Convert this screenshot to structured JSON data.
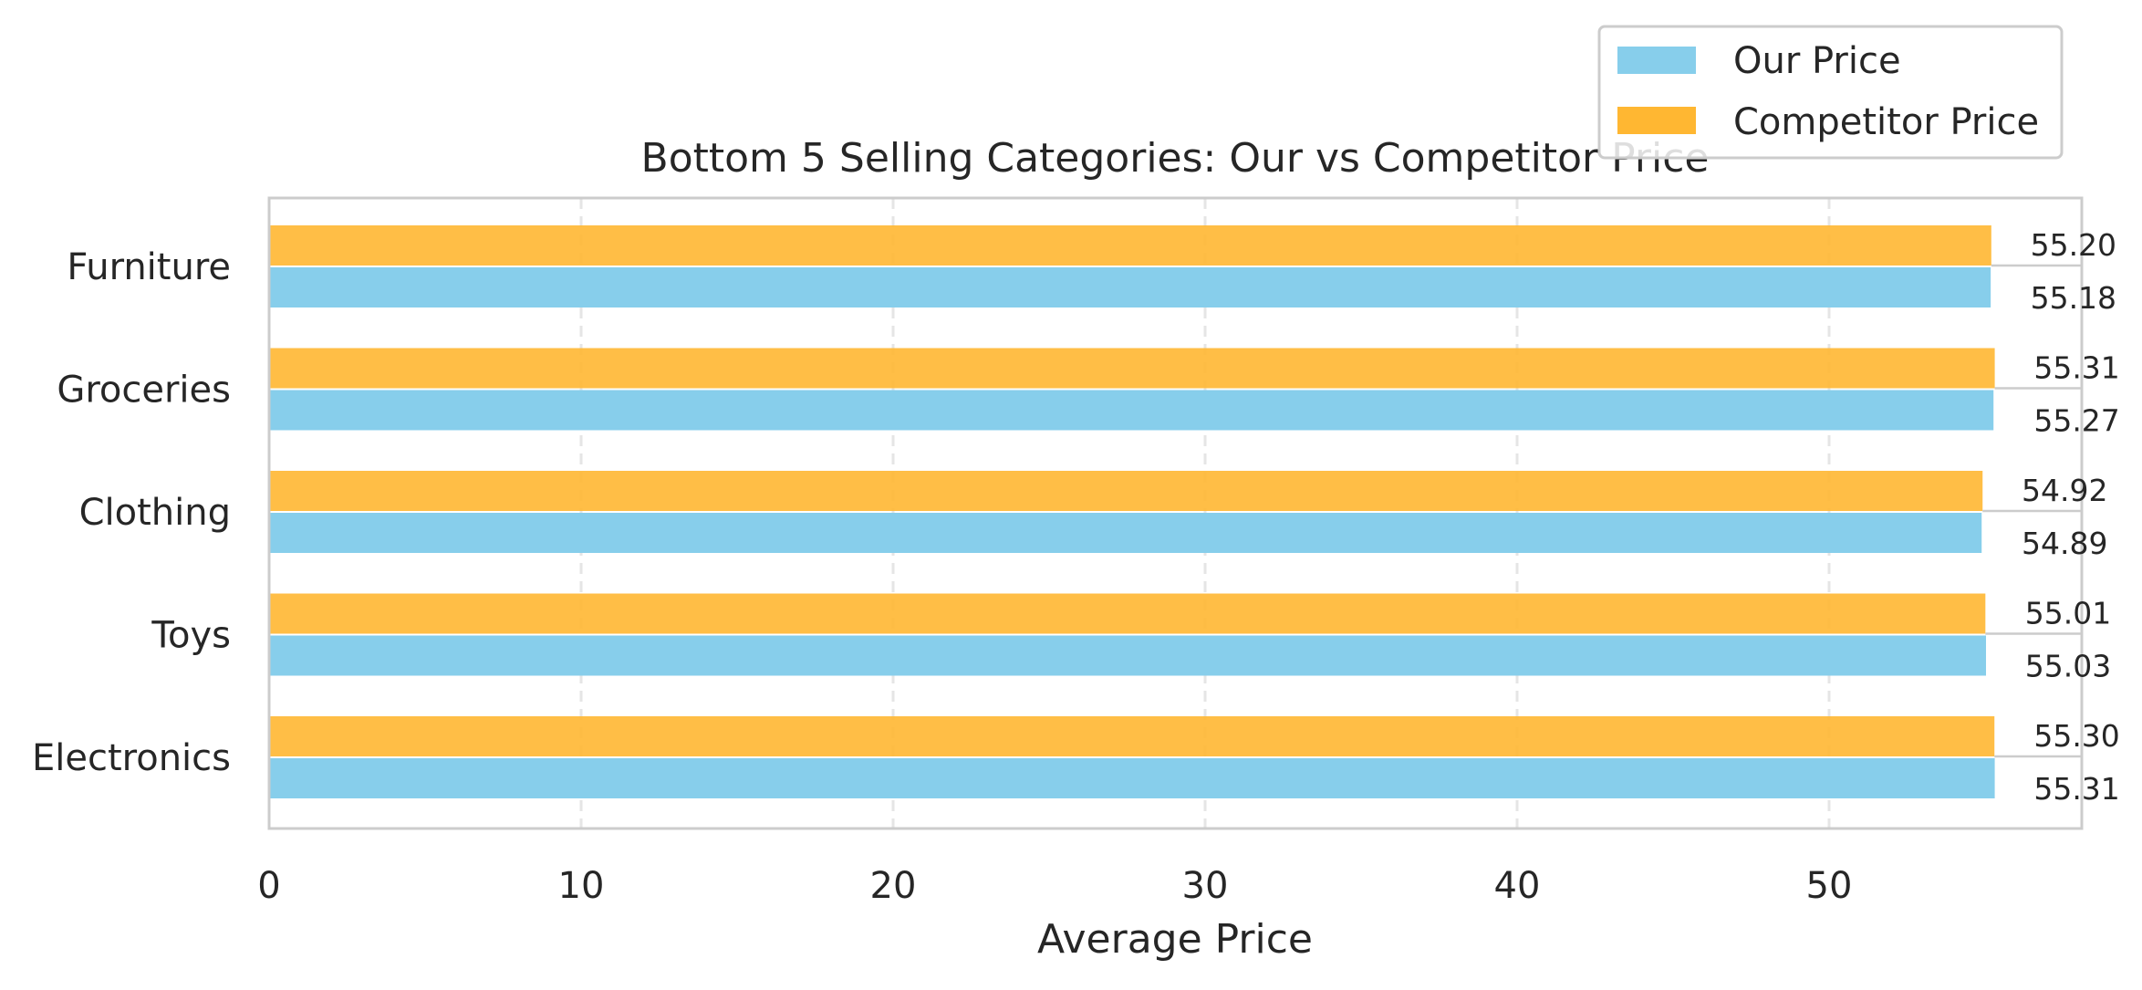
{
  "chart_data": {
    "type": "bar",
    "orientation": "horizontal",
    "title": "Bottom 5 Selling Categories: Our vs Competitor Price",
    "xlabel": "Average Price",
    "ylabel": "",
    "xlim": [
      0,
      58.1
    ],
    "xticks": [
      0,
      10,
      20,
      30,
      40,
      50
    ],
    "grid": "x-dashed",
    "legend_position": "top-right",
    "categories": [
      "Furniture",
      "Groceries",
      "Clothing",
      "Toys",
      "Electronics"
    ],
    "series": [
      {
        "name": "Our Price",
        "color": "#87ceeb",
        "values": [
          55.18,
          55.27,
          54.89,
          55.03,
          55.31
        ],
        "labels": [
          "55.18",
          "55.27",
          "54.89",
          "55.03",
          "55.31"
        ]
      },
      {
        "name": "Competitor Price",
        "color": "#ffb732",
        "values": [
          55.2,
          55.31,
          54.92,
          55.01,
          55.3
        ],
        "labels": [
          "55.20",
          "55.31",
          "54.92",
          "55.01",
          "55.30"
        ]
      }
    ]
  }
}
